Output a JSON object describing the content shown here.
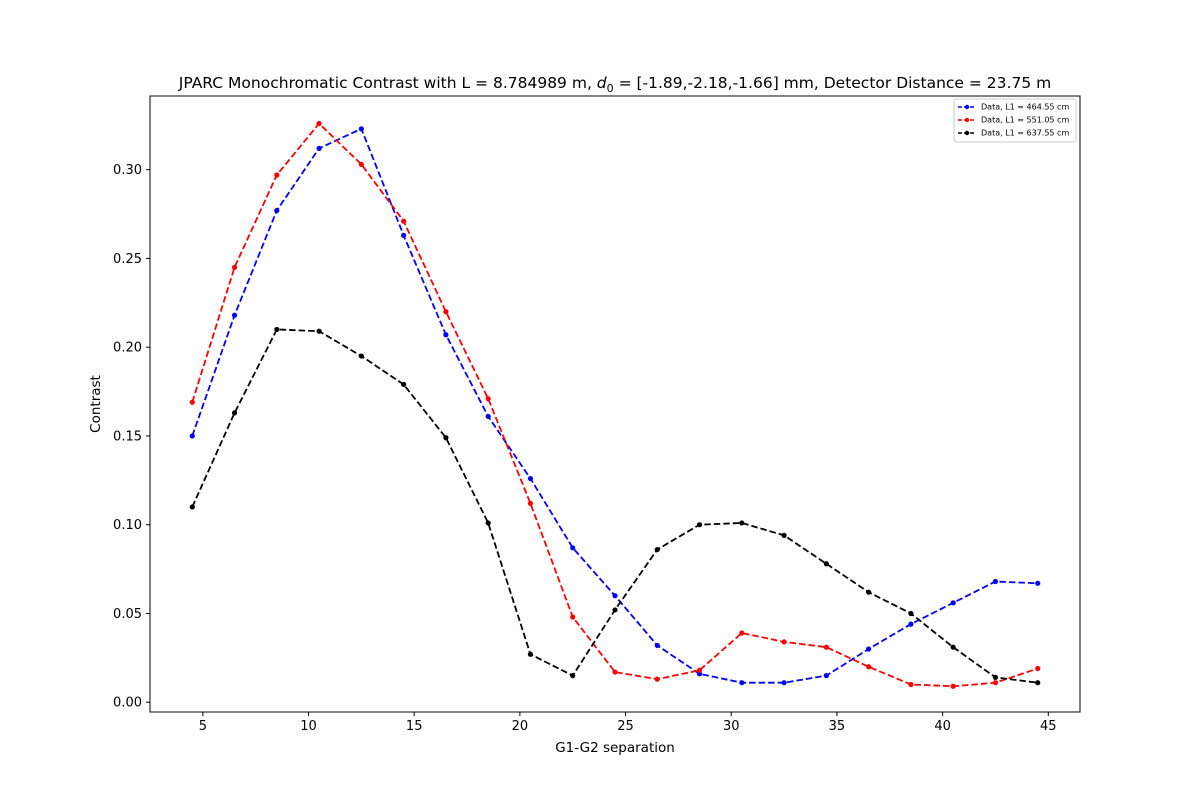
{
  "chart_data": {
    "type": "line",
    "title_parts": {
      "before": "JPARC Monochromatic Contrast with L = 8.784989 m, ",
      "d_main": "d",
      "d_sub": "0",
      "after": " = [-1.89,-2.18,-1.66] mm, Detector Distance = 23.75 m"
    },
    "xlabel": "G1-G2 separation",
    "ylabel": "Contrast",
    "xlim": [
      2.5,
      46.5
    ],
    "ylim": [
      -0.0055,
      0.3415
    ],
    "xticks": [
      5,
      10,
      15,
      20,
      25,
      30,
      35,
      40,
      45
    ],
    "xtick_labels": [
      "5",
      "10",
      "15",
      "20",
      "25",
      "30",
      "35",
      "40",
      "45"
    ],
    "yticks": [
      0.0,
      0.05,
      0.1,
      0.15,
      0.2,
      0.25,
      0.3
    ],
    "ytick_labels": [
      "0.00",
      "0.05",
      "0.10",
      "0.15",
      "0.20",
      "0.25",
      "0.30"
    ],
    "x": [
      4.5,
      6.5,
      8.5,
      10.5,
      12.5,
      14.5,
      16.5,
      18.5,
      20.5,
      22.5,
      24.5,
      26.5,
      28.5,
      30.5,
      32.5,
      34.5,
      36.5,
      38.5,
      40.5,
      42.5,
      44.5
    ],
    "legend_position": "top-right",
    "series": [
      {
        "name": "Data, L1 = 464.55 cm",
        "color": "#0000ff",
        "values": [
          0.15,
          0.218,
          0.277,
          0.312,
          0.323,
          0.263,
          0.207,
          0.161,
          0.126,
          0.087,
          0.06,
          0.032,
          0.016,
          0.011,
          0.011,
          0.015,
          0.03,
          0.044,
          0.056,
          0.068,
          0.067
        ]
      },
      {
        "name": "Data, L1 = 551.05 cm",
        "color": "#ff0000",
        "values": [
          0.169,
          0.245,
          0.297,
          0.326,
          0.303,
          0.271,
          0.22,
          0.171,
          0.112,
          0.048,
          0.017,
          0.013,
          0.018,
          0.039,
          0.034,
          0.031,
          0.02,
          0.01,
          0.009,
          0.011,
          0.019
        ]
      },
      {
        "name": "Data, L1 = 637.55 cm",
        "color": "#000000",
        "values": [
          0.11,
          0.163,
          0.21,
          0.209,
          0.195,
          0.179,
          0.149,
          0.101,
          0.027,
          0.015,
          0.052,
          0.086,
          0.1,
          0.101,
          0.094,
          0.078,
          0.062,
          0.05,
          0.031,
          0.014,
          0.011
        ]
      }
    ]
  }
}
